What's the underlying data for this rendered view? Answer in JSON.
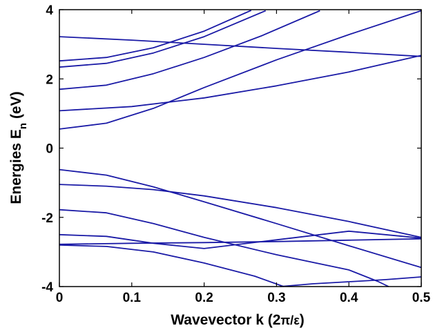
{
  "chart_data": {
    "type": "line",
    "title": "",
    "xlabel": {
      "main": "Wavevector k (2",
      "pi": "π",
      "slash": "/",
      "eps": "ε",
      "close": ")"
    },
    "ylabel": {
      "main": "Energies E",
      "sub": "n",
      "unit": " (eV)"
    },
    "xlim": [
      0,
      0.5
    ],
    "ylim": [
      -4,
      4
    ],
    "xticks": [
      {
        "value": 0,
        "label": "0"
      },
      {
        "value": 0.1,
        "label": "0.1"
      },
      {
        "value": 0.2,
        "label": "0.2"
      },
      {
        "value": 0.3,
        "label": "0.3"
      },
      {
        "value": 0.4,
        "label": "0.4"
      },
      {
        "value": 0.5,
        "label": "0.5"
      }
    ],
    "yticks": [
      {
        "value": -4,
        "label": "-4"
      },
      {
        "value": -2,
        "label": "-2"
      },
      {
        "value": 0,
        "label": "0"
      },
      {
        "value": 2,
        "label": "2"
      },
      {
        "value": 4,
        "label": "4"
      }
    ],
    "grid": false,
    "line_color": "#1a1aa6",
    "series": [
      {
        "points": [
          [
            0,
            3.22
          ],
          [
            0.1,
            3.12
          ],
          [
            0.2,
            3.0
          ],
          [
            0.3,
            2.88
          ],
          [
            0.4,
            2.77
          ],
          [
            0.5,
            2.65
          ]
        ]
      },
      {
        "points": [
          [
            0,
            2.52
          ],
          [
            0.065,
            2.62
          ],
          [
            0.13,
            2.9
          ],
          [
            0.2,
            3.38
          ],
          [
            0.265,
            3.98
          ]
        ]
      },
      {
        "points": [
          [
            0,
            2.34
          ],
          [
            0.065,
            2.45
          ],
          [
            0.13,
            2.75
          ],
          [
            0.2,
            3.22
          ],
          [
            0.285,
            3.97
          ]
        ]
      },
      {
        "points": [
          [
            0,
            1.7
          ],
          [
            0.065,
            1.82
          ],
          [
            0.13,
            2.15
          ],
          [
            0.2,
            2.62
          ],
          [
            0.28,
            3.25
          ],
          [
            0.36,
            3.97
          ]
        ]
      },
      {
        "points": [
          [
            0,
            1.08
          ],
          [
            0.1,
            1.2
          ],
          [
            0.2,
            1.45
          ],
          [
            0.3,
            1.8
          ],
          [
            0.4,
            2.2
          ],
          [
            0.5,
            2.68
          ]
        ]
      },
      {
        "points": [
          [
            0,
            0.55
          ],
          [
            0.065,
            0.72
          ],
          [
            0.13,
            1.15
          ],
          [
            0.2,
            1.75
          ],
          [
            0.3,
            2.55
          ],
          [
            0.4,
            3.28
          ],
          [
            0.5,
            3.97
          ]
        ]
      },
      {
        "points": [
          [
            0,
            -0.62
          ],
          [
            0.065,
            -0.78
          ],
          [
            0.13,
            -1.12
          ],
          [
            0.2,
            -1.55
          ],
          [
            0.3,
            -2.18
          ],
          [
            0.4,
            -2.82
          ],
          [
            0.5,
            -3.45
          ]
        ]
      },
      {
        "points": [
          [
            0,
            -1.05
          ],
          [
            0.065,
            -1.1
          ],
          [
            0.13,
            -1.2
          ],
          [
            0.2,
            -1.38
          ],
          [
            0.3,
            -1.72
          ],
          [
            0.4,
            -2.12
          ],
          [
            0.5,
            -2.58
          ]
        ]
      },
      {
        "points": [
          [
            0,
            -1.78
          ],
          [
            0.065,
            -1.87
          ],
          [
            0.13,
            -2.18
          ],
          [
            0.2,
            -2.58
          ],
          [
            0.3,
            -3.08
          ],
          [
            0.4,
            -3.52
          ],
          [
            0.44,
            -3.85
          ],
          [
            0.455,
            -4.0
          ]
        ]
      },
      {
        "points": [
          [
            0,
            -2.5
          ],
          [
            0.065,
            -2.55
          ],
          [
            0.13,
            -2.75
          ],
          [
            0.2,
            -2.9
          ],
          [
            0.3,
            -2.65
          ],
          [
            0.4,
            -2.4
          ],
          [
            0.5,
            -2.6
          ]
        ]
      },
      {
        "points": [
          [
            0,
            -2.78
          ],
          [
            0.1,
            -2.75
          ],
          [
            0.2,
            -2.73
          ],
          [
            0.3,
            -2.7
          ],
          [
            0.4,
            -2.66
          ],
          [
            0.5,
            -2.62
          ]
        ]
      },
      {
        "points": [
          [
            0,
            -2.8
          ],
          [
            0.065,
            -2.84
          ],
          [
            0.13,
            -3.0
          ],
          [
            0.2,
            -3.32
          ],
          [
            0.27,
            -3.7
          ],
          [
            0.31,
            -4.0
          ]
        ]
      },
      {
        "points": [
          [
            0.305,
            -4.0
          ],
          [
            0.35,
            -3.92
          ],
          [
            0.4,
            -3.86
          ],
          [
            0.45,
            -3.8
          ],
          [
            0.5,
            -3.72
          ]
        ]
      }
    ]
  }
}
